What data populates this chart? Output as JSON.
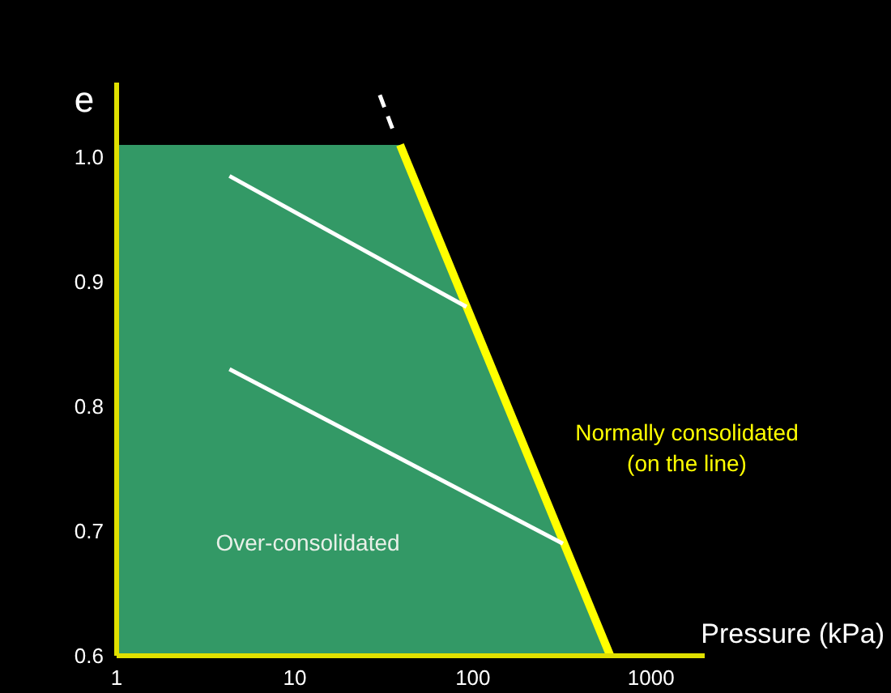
{
  "chart_data": {
    "type": "line",
    "xlabel": "Pressure (kPa)",
    "ylabel": "e",
    "log": "x",
    "xlim": [
      1,
      2000
    ],
    "xticks": [
      1,
      10,
      100,
      1000
    ],
    "ylim": [
      0.6,
      1.06
    ],
    "yticks": [
      {
        "value": 0.6,
        "label": "0.6"
      },
      {
        "value": 0.7,
        "label": "0.7"
      },
      {
        "value": 0.8,
        "label": "0.8"
      },
      {
        "value": 0.9,
        "label": "0.9"
      },
      {
        "value": 1.0,
        "label": "1.0"
      }
    ],
    "series": [
      {
        "type": "area",
        "color": "#339966",
        "x": [
          1,
          39,
          590
        ],
        "values": [
          1.01,
          1.01,
          0.6
        ]
      },
      {
        "color": "#ffff00",
        "x": [
          39,
          590
        ],
        "values": [
          1.01,
          0.6
        ]
      },
      {
        "color": "#ffffff",
        "x": [
          4.3,
          92
        ],
        "values": [
          0.985,
          0.88
        ]
      },
      {
        "color": "#ffffff",
        "x": [
          4.3,
          320
        ],
        "values": [
          0.83,
          0.69
        ]
      },
      {
        "color": "#ffffff",
        "line_style": "dashed",
        "x": [
          30,
          36
        ],
        "values": [
          1.05,
          1.02
        ]
      }
    ],
    "annotations": [
      "Over-consolidated",
      "Normally consolidated\n(on the line)"
    ]
  }
}
